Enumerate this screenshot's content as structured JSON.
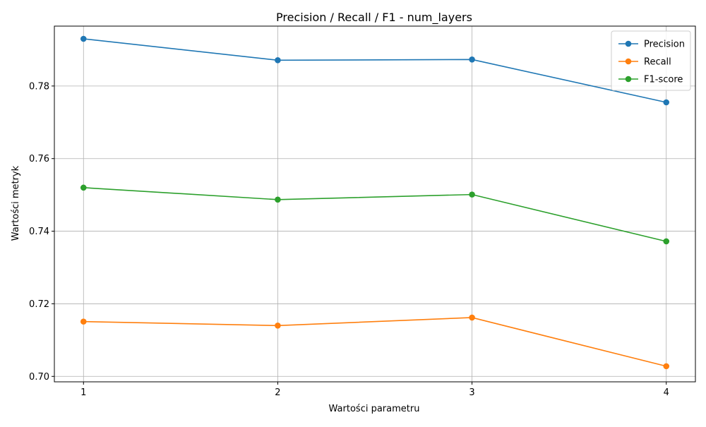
{
  "chart_data": {
    "type": "line",
    "title": "Precision / Recall / F1 - num_layers",
    "xlabel": "Wartości parametru",
    "ylabel": "Wartości metryk",
    "x": [
      1,
      2,
      3,
      4
    ],
    "x_ticks": [
      "1",
      "2",
      "3",
      "4"
    ],
    "xlim": [
      0.85,
      4.15
    ],
    "ylim": [
      0.6985,
      0.7965
    ],
    "y_ticks": [
      "0.70",
      "0.72",
      "0.74",
      "0.76",
      "0.78"
    ],
    "y_tick_values": [
      0.7,
      0.72,
      0.74,
      0.76,
      0.78
    ],
    "grid": true,
    "legend_position": "top-right",
    "series": [
      {
        "name": "Precision",
        "color": "#1f77b4",
        "values": [
          0.793,
          0.7871,
          0.7873,
          0.7755
        ]
      },
      {
        "name": "Recall",
        "color": "#ff7f0e",
        "values": [
          0.7151,
          0.714,
          0.7162,
          0.7028
        ]
      },
      {
        "name": "F1-score",
        "color": "#2ca02c",
        "values": [
          0.752,
          0.7487,
          0.7501,
          0.7372
        ]
      }
    ]
  }
}
